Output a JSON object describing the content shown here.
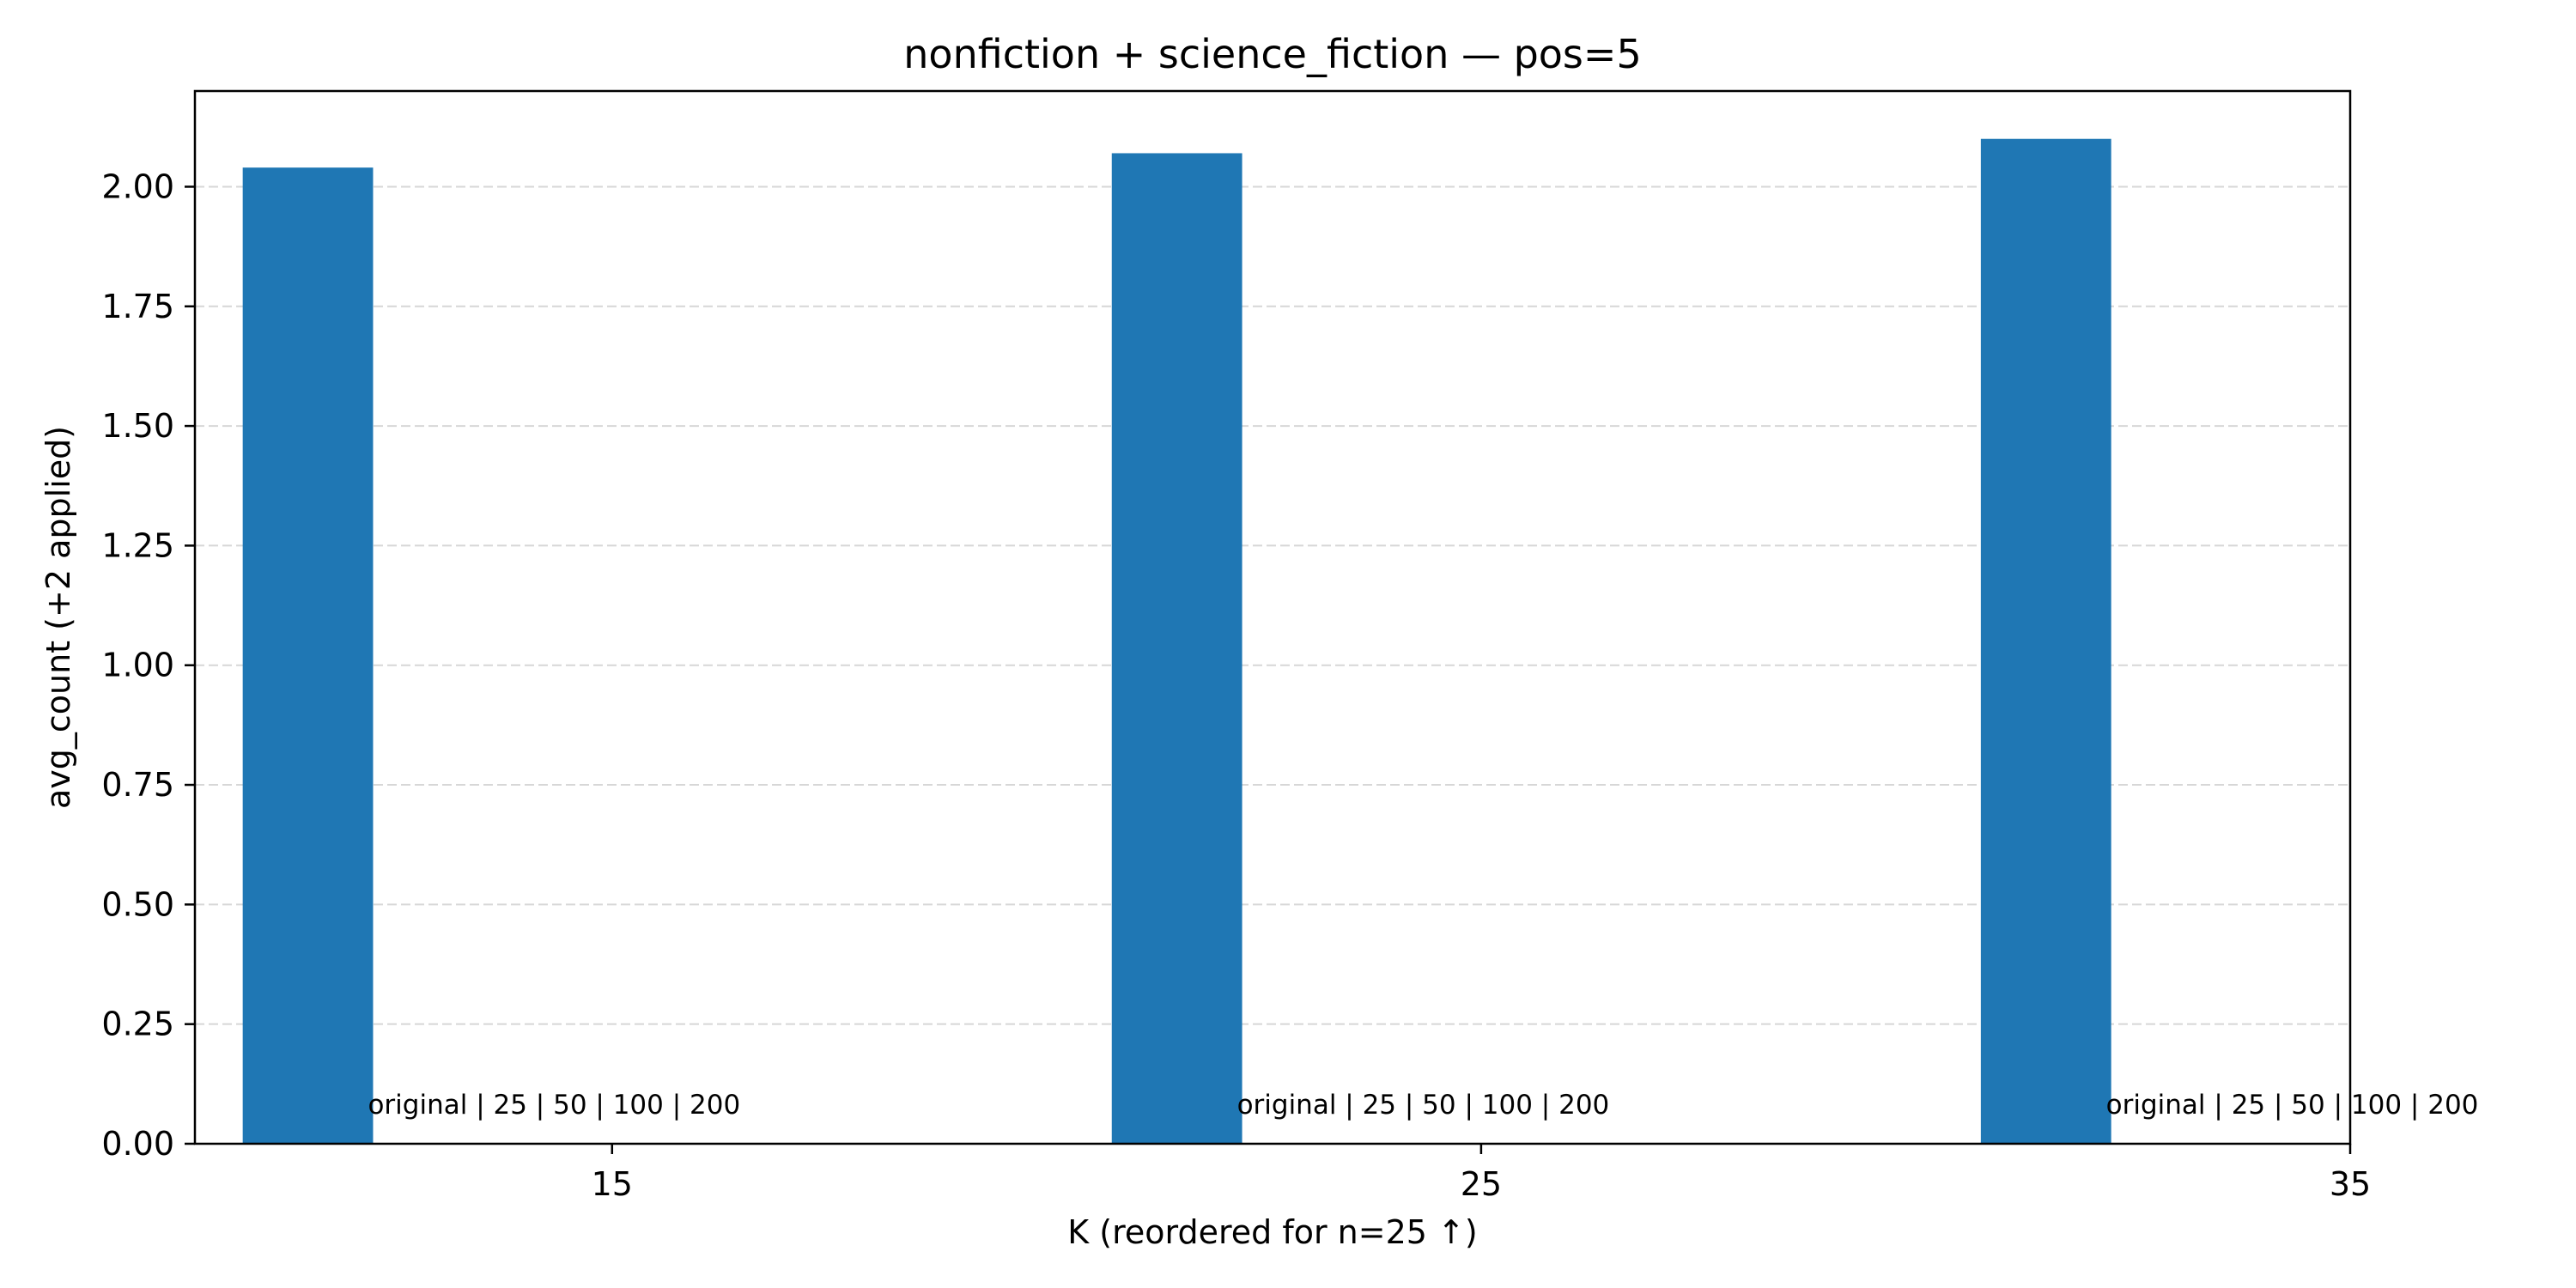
{
  "chart_data": {
    "type": "bar",
    "title": "nonfiction + science_fiction — pos=5",
    "xlabel": "K (reordered for n=25 ↑)",
    "ylabel": "avg_count (+2 applied)",
    "x_ticks": [
      "15",
      "25",
      "35"
    ],
    "x_range": [
      10.2,
      35
    ],
    "ylim": [
      0,
      2.2
    ],
    "y_ticks": [
      "0.00",
      "0.25",
      "0.50",
      "0.75",
      "1.00",
      "1.25",
      "1.50",
      "1.75",
      "2.00"
    ],
    "grid": "y dashed",
    "bar_color": "#1f77b4",
    "bars": [
      {
        "x": 11.5,
        "value": 2.04,
        "annotation": "original | 25 | 50 | 100 | 200"
      },
      {
        "x": 21.5,
        "value": 2.07,
        "annotation": "original | 25 | 50 | 100 | 200"
      },
      {
        "x": 31.5,
        "value": 2.1,
        "annotation": "original | 25 | 50 | 100 | 200"
      }
    ],
    "bar_width": 1.5
  }
}
